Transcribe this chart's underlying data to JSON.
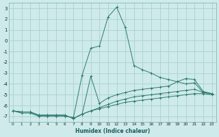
{
  "xlabel": "Humidex (Indice chaleur)",
  "background_color": "#ceeaea",
  "grid_color": "#a8d0d0",
  "line_color": "#2d7a6e",
  "xlim": [
    -0.5,
    23.5
  ],
  "ylim": [
    -7.5,
    3.5
  ],
  "x_ticks": [
    0,
    1,
    2,
    3,
    4,
    5,
    6,
    7,
    8,
    9,
    10,
    11,
    12,
    13,
    14,
    15,
    16,
    17,
    18,
    19,
    20,
    21,
    22,
    23
  ],
  "y_ticks": [
    -7,
    -6,
    -5,
    -4,
    -3,
    -2,
    -1,
    0,
    1,
    2,
    3
  ],
  "series": [
    {
      "x": [
        0,
        1,
        2,
        3,
        4,
        5,
        6,
        7,
        8,
        9,
        10,
        11,
        12,
        13,
        14,
        15,
        16,
        17,
        18,
        19,
        20,
        21,
        22,
        23
      ],
      "y": [
        -6.5,
        -6.7,
        -6.7,
        -7.0,
        -7.0,
        -7.0,
        -7.0,
        -7.1,
        -3.2,
        -0.7,
        -0.5,
        2.2,
        3.1,
        1.2,
        -2.3,
        -2.7,
        -3.0,
        -3.4,
        -3.6,
        -3.8,
        -4.0,
        -3.9,
        -4.8,
        -4.9
      ]
    },
    {
      "x": [
        0,
        1,
        2,
        3,
        4,
        5,
        6,
        7,
        8,
        9,
        10,
        11,
        12,
        13,
        14,
        15,
        16,
        17,
        18,
        19,
        20,
        21,
        22,
        23
      ],
      "y": [
        -6.5,
        -6.6,
        -6.6,
        -6.9,
        -6.9,
        -6.9,
        -6.9,
        -7.2,
        -6.8,
        -3.3,
        -5.8,
        -5.3,
        -5.0,
        -4.8,
        -4.6,
        -4.5,
        -4.4,
        -4.3,
        -4.2,
        -3.8,
        -3.5,
        -3.6,
        -4.7,
        -4.9
      ]
    },
    {
      "x": [
        0,
        1,
        2,
        3,
        4,
        5,
        6,
        7,
        8,
        9,
        10,
        11,
        12,
        13,
        14,
        15,
        16,
        17,
        18,
        19,
        20,
        21,
        22,
        23
      ],
      "y": [
        -6.5,
        -6.6,
        -6.6,
        -6.9,
        -6.9,
        -6.9,
        -6.9,
        -7.2,
        -6.8,
        -6.5,
        -6.2,
        -5.9,
        -5.6,
        -5.4,
        -5.2,
        -5.1,
        -5.0,
        -4.9,
        -4.8,
        -4.7,
        -4.6,
        -4.5,
        -4.8,
        -4.9
      ]
    },
    {
      "x": [
        0,
        1,
        2,
        3,
        4,
        5,
        6,
        7,
        8,
        9,
        10,
        11,
        12,
        13,
        14,
        15,
        16,
        17,
        18,
        19,
        20,
        21,
        22,
        23
      ],
      "y": [
        -6.5,
        -6.6,
        -6.6,
        -6.9,
        -6.9,
        -6.9,
        -6.9,
        -7.2,
        -6.8,
        -6.5,
        -6.3,
        -6.1,
        -5.9,
        -5.7,
        -5.6,
        -5.5,
        -5.4,
        -5.3,
        -5.2,
        -5.1,
        -5.0,
        -4.9,
        -4.9,
        -5.0
      ]
    }
  ]
}
